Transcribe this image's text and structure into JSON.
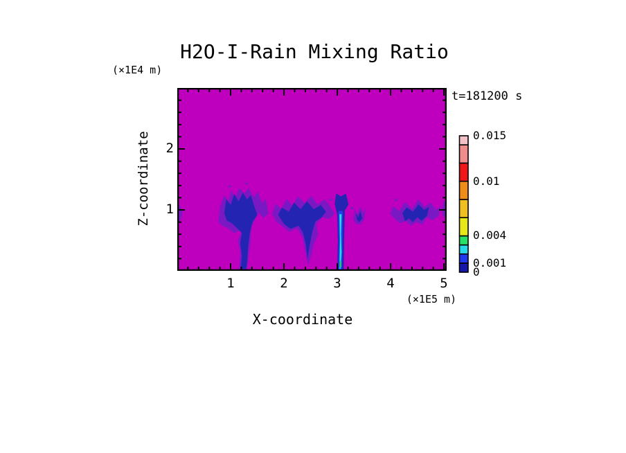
{
  "chart_data": {
    "type": "heatmap",
    "title": "H2O-I-Rain Mixing Ratio",
    "time_label": "t=181200 s",
    "xlabel": "X-coordinate",
    "x_unit_label": "(×1E5 m)",
    "ylabel": "Z-coordinate",
    "y_unit_label": "(×1E4 m)",
    "x_range": [
      0,
      5.05
    ],
    "z_range": [
      0,
      3.0
    ],
    "x_ticks": {
      "values": [
        1,
        2,
        3,
        4,
        5
      ],
      "labels": [
        "1",
        "2",
        "3",
        "4",
        "5"
      ]
    },
    "z_ticks": {
      "values": [
        1,
        2
      ],
      "labels": [
        "1",
        "2"
      ]
    },
    "x_minor_step": 0.2,
    "z_minor_step": 0.2,
    "background_value_color": "#BE00BE",
    "palette": {
      "violet": "#7A18C4",
      "navy": "#2424B2",
      "blue": "#2240F0",
      "cyan": "#22DCE6",
      "green": "#22CC5C"
    },
    "colorbar": {
      "max": 0.015,
      "levels": [
        0,
        0.001,
        0.002,
        0.003,
        0.004,
        0.006,
        0.008,
        0.01,
        0.012,
        0.014,
        0.015
      ],
      "colors": [
        "#1818A8",
        "#2038F0",
        "#28D8E8",
        "#28E068",
        "#E8E818",
        "#F0C020",
        "#F08C18",
        "#EE1818",
        "#F08C8C",
        "#F2C2C8"
      ],
      "labels": [
        {
          "value": 0.015,
          "text": "0.015"
        },
        {
          "value": 0.01,
          "text": "0.01"
        },
        {
          "value": 0.004,
          "text": "0.004"
        },
        {
          "value": 0.001,
          "text": "0.001"
        },
        {
          "value": 0,
          "text": "0"
        }
      ]
    },
    "features": [
      {
        "name": "left-edge-wisp",
        "color": "violet",
        "points": [
          [
            0,
            1.13
          ],
          [
            0.06,
            1.05
          ],
          [
            0.1,
            0.96
          ],
          [
            0.07,
            0.85
          ],
          [
            0,
            0.78
          ]
        ]
      },
      {
        "name": "storm1-halo",
        "color": "violet",
        "points": [
          [
            0.77,
            0.8
          ],
          [
            0.8,
            1.05
          ],
          [
            0.88,
            1.24
          ],
          [
            0.96,
            1.14
          ],
          [
            1.01,
            1.32
          ],
          [
            1.09,
            1.2
          ],
          [
            1.16,
            1.36
          ],
          [
            1.26,
            1.27
          ],
          [
            1.34,
            1.36
          ],
          [
            1.43,
            1.21
          ],
          [
            1.51,
            1.3
          ],
          [
            1.59,
            1.11
          ],
          [
            1.66,
            1.18
          ],
          [
            1.71,
            0.94
          ],
          [
            1.62,
            0.87
          ],
          [
            1.53,
            0.95
          ],
          [
            1.45,
            0.84
          ],
          [
            1.39,
            0.71
          ],
          [
            1.37,
            0.45
          ],
          [
            1.34,
            0.25
          ],
          [
            1.31,
            0.02
          ],
          [
            1.16,
            0.02
          ],
          [
            1.18,
            0.3
          ],
          [
            1.14,
            0.5
          ],
          [
            1.22,
            0.68
          ],
          [
            1.06,
            0.62
          ],
          [
            0.95,
            0.7
          ],
          [
            0.86,
            0.73
          ]
        ]
      },
      {
        "name": "storm1-core",
        "color": "navy",
        "points": [
          [
            0.88,
            0.95
          ],
          [
            0.92,
            1.18
          ],
          [
            1.0,
            1.08
          ],
          [
            1.07,
            1.26
          ],
          [
            1.15,
            1.14
          ],
          [
            1.23,
            1.28
          ],
          [
            1.31,
            1.17
          ],
          [
            1.38,
            1.24
          ],
          [
            1.45,
            1.04
          ],
          [
            1.5,
            0.92
          ],
          [
            1.41,
            0.8
          ],
          [
            1.36,
            0.62
          ],
          [
            1.33,
            0.4
          ],
          [
            1.31,
            0.15
          ],
          [
            1.29,
            0.03
          ],
          [
            1.19,
            0.03
          ],
          [
            1.21,
            0.25
          ],
          [
            1.18,
            0.45
          ],
          [
            1.21,
            0.62
          ],
          [
            1.11,
            0.71
          ],
          [
            1.01,
            0.79
          ],
          [
            0.93,
            0.82
          ]
        ]
      },
      {
        "name": "storm2-halo",
        "color": "violet",
        "points": [
          [
            1.78,
            0.94
          ],
          [
            1.85,
            1.1
          ],
          [
            1.95,
            1.01
          ],
          [
            2.05,
            1.18
          ],
          [
            2.16,
            1.07
          ],
          [
            2.26,
            1.22
          ],
          [
            2.39,
            1.11
          ],
          [
            2.51,
            1.23
          ],
          [
            2.63,
            1.09
          ],
          [
            2.76,
            1.17
          ],
          [
            2.88,
            1.04
          ],
          [
            2.95,
            0.94
          ],
          [
            2.85,
            0.85
          ],
          [
            2.72,
            0.88
          ],
          [
            2.61,
            0.77
          ],
          [
            2.64,
            0.6
          ],
          [
            2.56,
            0.44
          ],
          [
            2.5,
            0.22
          ],
          [
            2.45,
            0.1
          ],
          [
            2.4,
            0.32
          ],
          [
            2.35,
            0.55
          ],
          [
            2.24,
            0.7
          ],
          [
            2.1,
            0.64
          ],
          [
            1.96,
            0.74
          ],
          [
            1.85,
            0.81
          ]
        ]
      },
      {
        "name": "storm2-core",
        "color": "navy",
        "points": [
          [
            1.89,
            0.92
          ],
          [
            1.96,
            1.04
          ],
          [
            2.09,
            0.97
          ],
          [
            2.19,
            1.12
          ],
          [
            2.31,
            1.01
          ],
          [
            2.43,
            1.14
          ],
          [
            2.56,
            1.01
          ],
          [
            2.69,
            1.08
          ],
          [
            2.79,
            0.97
          ],
          [
            2.7,
            0.87
          ],
          [
            2.59,
            0.81
          ],
          [
            2.53,
            0.64
          ],
          [
            2.48,
            0.4
          ],
          [
            2.44,
            0.2
          ],
          [
            2.41,
            0.43
          ],
          [
            2.36,
            0.62
          ],
          [
            2.28,
            0.74
          ],
          [
            2.12,
            0.69
          ],
          [
            2.0,
            0.77
          ]
        ]
      },
      {
        "name": "rainshaft-outer",
        "color": "navy",
        "points": [
          [
            2.95,
            1.1
          ],
          [
            2.98,
            1.27
          ],
          [
            3.07,
            1.22
          ],
          [
            3.16,
            1.27
          ],
          [
            3.21,
            1.09
          ],
          [
            3.14,
            0.99
          ],
          [
            3.13,
            0.6
          ],
          [
            3.12,
            0.02
          ],
          [
            3.0,
            0.02
          ],
          [
            3.01,
            0.5
          ],
          [
            3.0,
            0.92
          ]
        ]
      },
      {
        "name": "rainshaft-inner",
        "color": "blue",
        "points": [
          [
            3.02,
            0.98
          ],
          [
            3.1,
            0.98
          ],
          [
            3.1,
            0.55
          ],
          [
            3.09,
            0.02
          ],
          [
            3.02,
            0.02
          ],
          [
            3.03,
            0.5
          ]
        ]
      },
      {
        "name": "rainshaft-cyan-core",
        "color": "cyan",
        "points": [
          [
            3.04,
            0.93
          ],
          [
            3.08,
            0.93
          ],
          [
            3.07,
            0.6
          ],
          [
            3.08,
            0.3
          ],
          [
            3.06,
            0.03
          ],
          [
            3.04,
            0.03
          ],
          [
            3.05,
            0.5
          ]
        ]
      },
      {
        "name": "rainshaft-green-core",
        "color": "green",
        "points": [
          [
            3.045,
            0.16
          ],
          [
            3.075,
            0.16
          ],
          [
            3.075,
            0.06
          ],
          [
            3.045,
            0.06
          ]
        ]
      },
      {
        "name": "patch-halo",
        "color": "violet",
        "points": [
          [
            3.3,
            0.85
          ],
          [
            3.33,
            1.01
          ],
          [
            3.38,
            0.92
          ],
          [
            3.43,
            1.06
          ],
          [
            3.48,
            0.95
          ],
          [
            3.53,
            1.02
          ],
          [
            3.5,
            0.84
          ],
          [
            3.44,
            0.77
          ],
          [
            3.36,
            0.76
          ]
        ]
      },
      {
        "name": "patch-core",
        "color": "navy",
        "points": [
          [
            3.35,
            0.95
          ],
          [
            3.39,
            0.88
          ],
          [
            3.43,
            0.98
          ],
          [
            3.47,
            0.86
          ],
          [
            3.41,
            0.8
          ],
          [
            3.37,
            0.84
          ]
        ]
      },
      {
        "name": "storm3-halo",
        "color": "violet",
        "points": [
          [
            3.99,
            0.94
          ],
          [
            4.05,
            1.06
          ],
          [
            4.16,
            0.98
          ],
          [
            4.27,
            1.13
          ],
          [
            4.4,
            1.02
          ],
          [
            4.52,
            1.17
          ],
          [
            4.64,
            1.05
          ],
          [
            4.75,
            1.12
          ],
          [
            4.85,
            1.0
          ],
          [
            4.94,
            1.06
          ],
          [
            4.9,
            0.9
          ],
          [
            4.78,
            0.83
          ],
          [
            4.68,
            0.88
          ],
          [
            4.6,
            0.76
          ],
          [
            4.48,
            0.8
          ],
          [
            4.38,
            0.74
          ],
          [
            4.28,
            0.82
          ],
          [
            4.18,
            0.78
          ],
          [
            4.08,
            0.85
          ]
        ]
      },
      {
        "name": "storm3-core",
        "color": "navy",
        "points": [
          [
            4.22,
            0.95
          ],
          [
            4.3,
            1.04
          ],
          [
            4.42,
            0.97
          ],
          [
            4.52,
            1.09
          ],
          [
            4.63,
            1.0
          ],
          [
            4.72,
            1.05
          ],
          [
            4.68,
            0.9
          ],
          [
            4.58,
            0.82
          ],
          [
            4.5,
            0.88
          ],
          [
            4.42,
            0.8
          ],
          [
            4.34,
            0.86
          ],
          [
            4.27,
            0.81
          ]
        ]
      },
      {
        "name": "right-edge-wisp",
        "color": "violet",
        "points": [
          [
            4.96,
            1.01
          ],
          [
            5.0,
            1.15
          ],
          [
            5.05,
            1.1
          ],
          [
            5.05,
            0.87
          ],
          [
            4.98,
            0.9
          ]
        ]
      }
    ],
    "speckles": [
      [
        0.98,
        1.38
      ],
      [
        1.3,
        1.43
      ],
      [
        2.82,
        1.08
      ],
      [
        2.87,
        1.16
      ],
      [
        3.28,
        1.02
      ],
      [
        4.1,
        1.16
      ]
    ]
  }
}
